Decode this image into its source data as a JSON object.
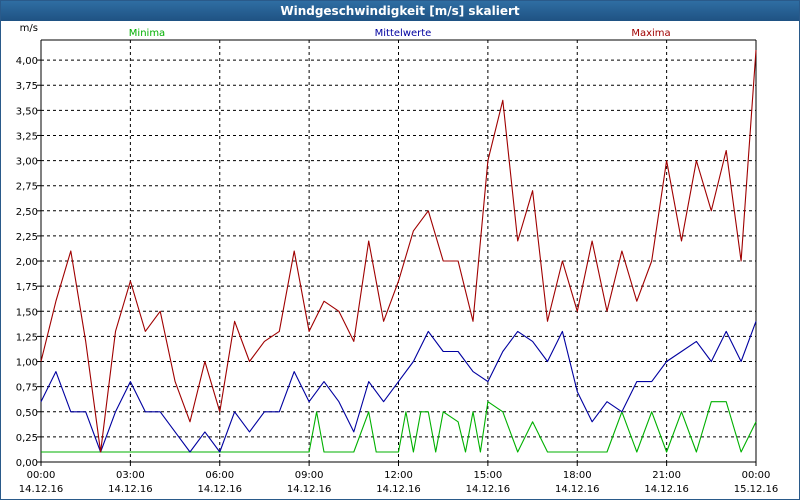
{
  "window": {
    "title": "Windgeschwindigkeit [m/s] skaliert"
  },
  "colors": {
    "minima": "#00b000",
    "mittelwerte": "#0000a0",
    "maxima": "#a00000",
    "grid": "#000000",
    "axis": "#000000"
  },
  "chart_data": {
    "type": "line",
    "title": "Windgeschwindigkeit [m/s] skaliert",
    "ylabel": "m/s",
    "ylim": [
      0,
      4.2
    ],
    "xlim": [
      0,
      24
    ],
    "grid": true,
    "legend_position": "top",
    "yticks": [
      "0,00",
      "0,25",
      "0,50",
      "0,75",
      "1,00",
      "1,25",
      "1,50",
      "1,75",
      "2,00",
      "2,25",
      "2,50",
      "2,75",
      "3,00",
      "3,25",
      "3,50",
      "3,75",
      "4,00"
    ],
    "xticks": [
      {
        "time": "00:00",
        "date": "14.12.16"
      },
      {
        "time": "03:00",
        "date": "14.12.16"
      },
      {
        "time": "06:00",
        "date": "14.12.16"
      },
      {
        "time": "09:00",
        "date": "14.12.16"
      },
      {
        "time": "12:00",
        "date": "14.12.16"
      },
      {
        "time": "15:00",
        "date": "14.12.16"
      },
      {
        "time": "18:00",
        "date": "14.12.16"
      },
      {
        "time": "21:00",
        "date": "14.12.16"
      },
      {
        "time": "00:00",
        "date": "15.12.16"
      }
    ],
    "series": [
      {
        "name": "Minima",
        "key": "minima",
        "x": [
          0,
          9.0,
          9.25,
          9.5,
          10.0,
          10.5,
          11.0,
          11.25,
          11.5,
          12.0,
          12.25,
          12.5,
          12.75,
          13.0,
          13.25,
          13.5,
          14.0,
          14.25,
          14.5,
          14.75,
          15.0,
          15.5,
          16.0,
          16.5,
          17.0,
          17.5,
          18.0,
          18.5,
          19.0,
          19.5,
          20.0,
          20.5,
          21.0,
          21.5,
          22.0,
          22.5,
          23.0,
          23.5,
          24.0
        ],
        "values": [
          0.1,
          0.1,
          0.5,
          0.1,
          0.1,
          0.1,
          0.5,
          0.1,
          0.1,
          0.1,
          0.5,
          0.1,
          0.5,
          0.5,
          0.1,
          0.5,
          0.4,
          0.1,
          0.5,
          0.1,
          0.6,
          0.5,
          0.1,
          0.4,
          0.1,
          0.1,
          0.1,
          0.1,
          0.1,
          0.5,
          0.1,
          0.5,
          0.1,
          0.5,
          0.1,
          0.6,
          0.6,
          0.1,
          0.4
        ]
      },
      {
        "name": "Mittelwerte",
        "key": "mittelwerte",
        "x": [
          0,
          0.5,
          1.0,
          1.5,
          2.0,
          2.5,
          3.0,
          3.5,
          4.0,
          4.5,
          5.0,
          5.5,
          6.0,
          6.5,
          7.0,
          7.5,
          8.0,
          8.5,
          9.0,
          9.5,
          10.0,
          10.5,
          11.0,
          11.5,
          12.0,
          12.5,
          13.0,
          13.5,
          14.0,
          14.5,
          15.0,
          15.5,
          16.0,
          16.5,
          17.0,
          17.5,
          18.0,
          18.5,
          19.0,
          19.5,
          20.0,
          20.5,
          21.0,
          21.5,
          22.0,
          22.5,
          23.0,
          23.5,
          24.0
        ],
        "values": [
          0.6,
          0.9,
          0.5,
          0.5,
          0.1,
          0.5,
          0.8,
          0.5,
          0.5,
          0.3,
          0.1,
          0.3,
          0.1,
          0.5,
          0.3,
          0.5,
          0.5,
          0.9,
          0.6,
          0.8,
          0.6,
          0.3,
          0.8,
          0.6,
          0.8,
          1.0,
          1.3,
          1.1,
          1.1,
          0.9,
          0.8,
          1.1,
          1.3,
          1.2,
          1.0,
          1.3,
          0.7,
          0.4,
          0.6,
          0.5,
          0.8,
          0.8,
          1.0,
          1.1,
          1.2,
          1.0,
          1.3,
          1.0,
          1.4
        ]
      },
      {
        "name": "Maxima",
        "key": "maxima",
        "x": [
          0,
          0.5,
          1.0,
          1.5,
          2.0,
          2.5,
          3.0,
          3.5,
          4.0,
          4.5,
          5.0,
          5.5,
          6.0,
          6.5,
          7.0,
          7.5,
          8.0,
          8.5,
          9.0,
          9.5,
          10.0,
          10.5,
          11.0,
          11.5,
          12.0,
          12.5,
          13.0,
          13.5,
          14.0,
          14.5,
          15.0,
          15.5,
          16.0,
          16.5,
          17.0,
          17.5,
          18.0,
          18.5,
          19.0,
          19.5,
          20.0,
          20.5,
          21.0,
          21.5,
          22.0,
          22.5,
          23.0,
          23.5,
          24.0
        ],
        "values": [
          1.0,
          1.6,
          2.1,
          1.2,
          0.1,
          1.3,
          1.8,
          1.3,
          1.5,
          0.8,
          0.4,
          1.0,
          0.5,
          1.4,
          1.0,
          1.2,
          1.3,
          2.1,
          1.3,
          1.6,
          1.5,
          1.2,
          2.2,
          1.4,
          1.8,
          2.3,
          2.5,
          2.0,
          2.0,
          1.4,
          3.0,
          3.6,
          2.2,
          2.7,
          1.4,
          2.0,
          1.5,
          2.2,
          1.5,
          2.1,
          1.6,
          2.0,
          3.0,
          2.2,
          3.0,
          2.5,
          3.1,
          2.0,
          4.1
        ]
      }
    ]
  }
}
